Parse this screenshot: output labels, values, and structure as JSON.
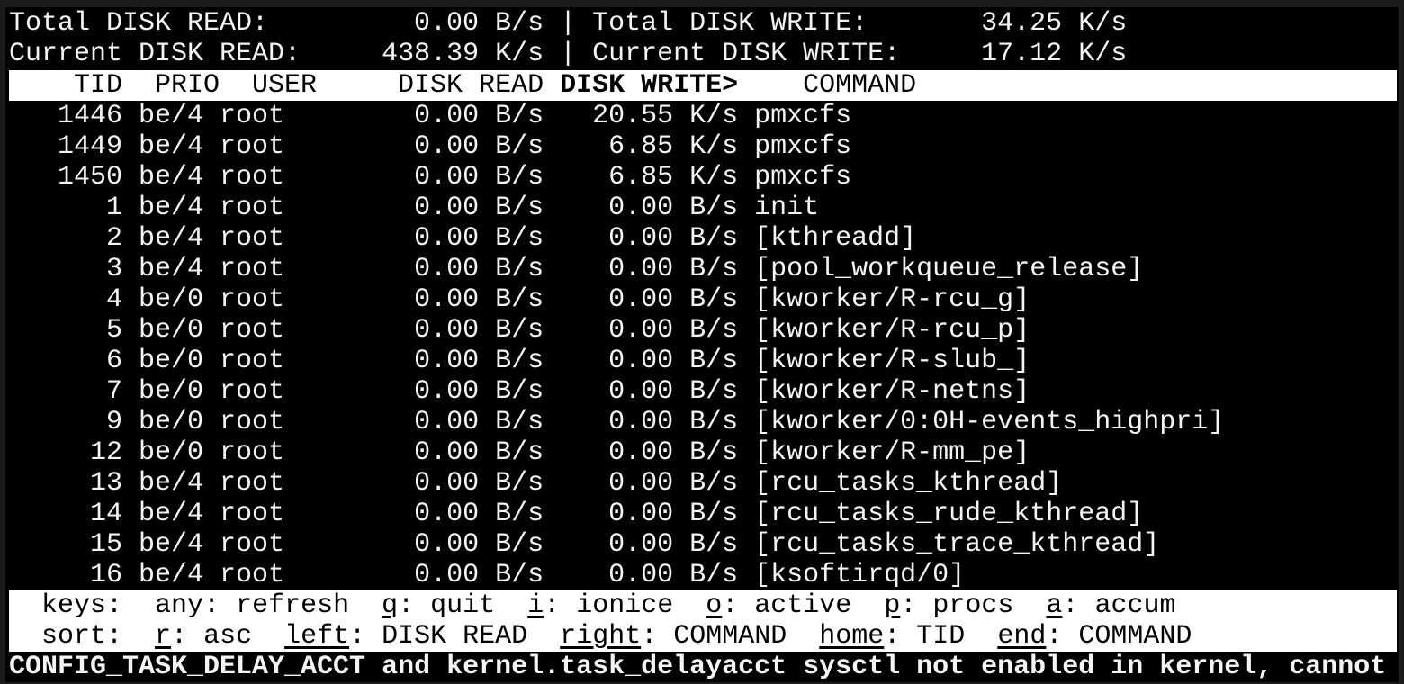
{
  "summary": {
    "total_read_label": "Total DISK READ:",
    "total_read": "0.00 B/s",
    "total_write_label": "Total DISK WRITE:",
    "total_write": "34.25 K/s",
    "current_read_label": "Current DISK READ:",
    "current_read": "438.39 K/s",
    "current_write_label": "Current DISK WRITE:",
    "current_write": "17.12 K/s",
    "separator": "|"
  },
  "header": {
    "tid": "TID",
    "prio": "PRIO",
    "user": "USER",
    "disk_read": "DISK READ",
    "disk_write": "DISK WRITE>",
    "command": "COMMAND"
  },
  "rows": [
    {
      "tid": "1446",
      "prio": "be/4",
      "user": "root",
      "read": "0.00 B/s",
      "write": "20.55 K/s",
      "command": "pmxcfs"
    },
    {
      "tid": "1449",
      "prio": "be/4",
      "user": "root",
      "read": "0.00 B/s",
      "write": "6.85 K/s",
      "command": "pmxcfs"
    },
    {
      "tid": "1450",
      "prio": "be/4",
      "user": "root",
      "read": "0.00 B/s",
      "write": "6.85 K/s",
      "command": "pmxcfs"
    },
    {
      "tid": "1",
      "prio": "be/4",
      "user": "root",
      "read": "0.00 B/s",
      "write": "0.00 B/s",
      "command": "init"
    },
    {
      "tid": "2",
      "prio": "be/4",
      "user": "root",
      "read": "0.00 B/s",
      "write": "0.00 B/s",
      "command": "[kthreadd]"
    },
    {
      "tid": "3",
      "prio": "be/4",
      "user": "root",
      "read": "0.00 B/s",
      "write": "0.00 B/s",
      "command": "[pool_workqueue_release]"
    },
    {
      "tid": "4",
      "prio": "be/0",
      "user": "root",
      "read": "0.00 B/s",
      "write": "0.00 B/s",
      "command": "[kworker/R-rcu_g]"
    },
    {
      "tid": "5",
      "prio": "be/0",
      "user": "root",
      "read": "0.00 B/s",
      "write": "0.00 B/s",
      "command": "[kworker/R-rcu_p]"
    },
    {
      "tid": "6",
      "prio": "be/0",
      "user": "root",
      "read": "0.00 B/s",
      "write": "0.00 B/s",
      "command": "[kworker/R-slub_]"
    },
    {
      "tid": "7",
      "prio": "be/0",
      "user": "root",
      "read": "0.00 B/s",
      "write": "0.00 B/s",
      "command": "[kworker/R-netns]"
    },
    {
      "tid": "9",
      "prio": "be/0",
      "user": "root",
      "read": "0.00 B/s",
      "write": "0.00 B/s",
      "command": "[kworker/0:0H-events_highpri]"
    },
    {
      "tid": "12",
      "prio": "be/0",
      "user": "root",
      "read": "0.00 B/s",
      "write": "0.00 B/s",
      "command": "[kworker/R-mm_pe]"
    },
    {
      "tid": "13",
      "prio": "be/4",
      "user": "root",
      "read": "0.00 B/s",
      "write": "0.00 B/s",
      "command": "[rcu_tasks_kthread]"
    },
    {
      "tid": "14",
      "prio": "be/4",
      "user": "root",
      "read": "0.00 B/s",
      "write": "0.00 B/s",
      "command": "[rcu_tasks_rude_kthread]"
    },
    {
      "tid": "15",
      "prio": "be/4",
      "user": "root",
      "read": "0.00 B/s",
      "write": "0.00 B/s",
      "command": "[rcu_tasks_trace_kthread]"
    },
    {
      "tid": "16",
      "prio": "be/4",
      "user": "root",
      "read": "0.00 B/s",
      "write": "0.00 B/s",
      "command": "[ksoftirqd/0]"
    }
  ],
  "keys": {
    "label": "keys:",
    "items": [
      {
        "key": "any",
        "desc": "refresh",
        "underlined": false
      },
      {
        "key": "q",
        "desc": "quit",
        "underlined": true
      },
      {
        "key": "i",
        "desc": "ionice",
        "underlined": true
      },
      {
        "key": "o",
        "desc": "active",
        "underlined": true
      },
      {
        "key": "p",
        "desc": "procs",
        "underlined": true
      },
      {
        "key": "a",
        "desc": "accum",
        "underlined": true
      }
    ]
  },
  "sort": {
    "label": "sort:",
    "items": [
      {
        "key": "r",
        "desc": "asc",
        "underlined": true
      },
      {
        "key": "left",
        "desc": "DISK READ",
        "underlined": true
      },
      {
        "key": "right",
        "desc": "COMMAND",
        "underlined": true
      },
      {
        "key": "home",
        "desc": "TID",
        "underlined": true
      },
      {
        "key": "end",
        "desc": "COMMAND",
        "underlined": true
      }
    ]
  },
  "warning": "CONFIG_TASK_DELAY_ACCT and kernel.task_delayacct sysctl not enabled in kernel, cannot",
  "colors": {
    "background": "#000000",
    "foreground": "#f4f4f4",
    "bar": "#ffffff",
    "frame": "#1c1c1c"
  }
}
